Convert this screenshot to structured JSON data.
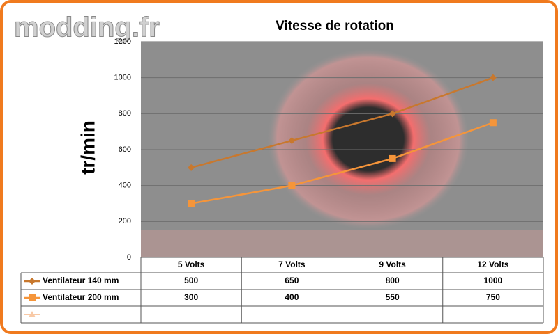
{
  "watermark": "modding.fr",
  "chart_data": {
    "type": "line",
    "title": "Vitesse de rotation",
    "y_label": "tr/min",
    "categories": [
      "5 Volts",
      "7 Volts",
      "9 Volts",
      "12 Volts"
    ],
    "series": [
      {
        "name": "Ventilateur 140 mm",
        "color": "#c8782e",
        "marker": "diamond",
        "values": [
          500,
          650,
          800,
          1000
        ]
      },
      {
        "name": "Ventilateur 200 mm",
        "color": "#f5953a",
        "marker": "square",
        "values": [
          300,
          400,
          550,
          750
        ]
      }
    ],
    "ylim": [
      0,
      1200
    ],
    "yticks": [
      0,
      200,
      400,
      600,
      800,
      1000,
      1200
    ],
    "grid": true,
    "data_table": true
  }
}
